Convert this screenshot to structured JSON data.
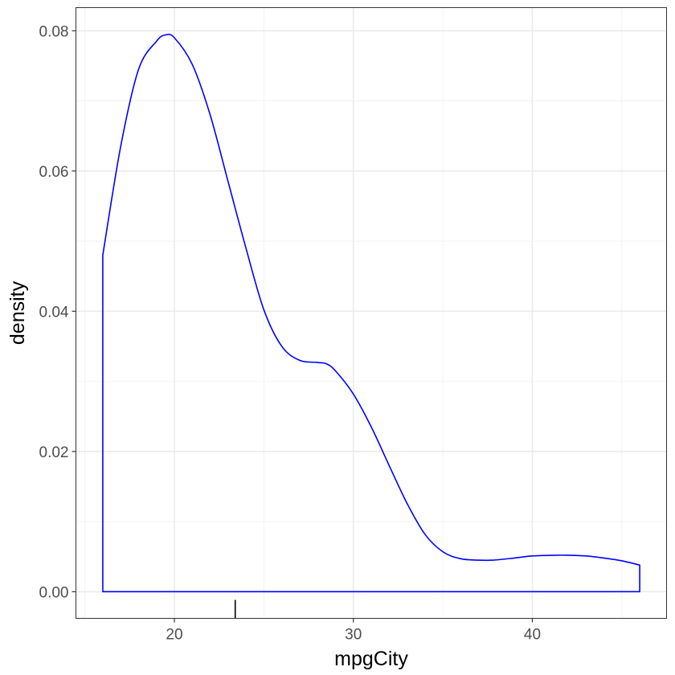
{
  "chart_data": {
    "type": "area",
    "xlabel": "mpgCity",
    "ylabel": "density",
    "xlim": [
      14.5,
      47.5
    ],
    "ylim": [
      -0.0038,
      0.0833
    ],
    "x_ticks": [
      20,
      30,
      40
    ],
    "x_tick_labels": [
      "20",
      "30",
      "40"
    ],
    "x_minor_ticks": [
      15,
      25,
      35,
      45
    ],
    "y_ticks": [
      0.0,
      0.02,
      0.04,
      0.06,
      0.08
    ],
    "y_tick_labels": [
      "0.00",
      "0.02",
      "0.04",
      "0.06",
      "0.08"
    ],
    "y_minor_ticks": [
      0.01,
      0.03,
      0.05,
      0.07
    ],
    "grid": true,
    "series": [
      {
        "color": "#0000ff",
        "fill": "none",
        "x": [
          16.0,
          17.0,
          18.0,
          19.0,
          19.5,
          20.0,
          21.0,
          22.0,
          23.0,
          24.0,
          25.0,
          26.0,
          27.0,
          28.0,
          28.5,
          29.0,
          30.0,
          31.0,
          32.0,
          33.0,
          34.0,
          35.0,
          36.0,
          37.0,
          37.8,
          39.0,
          40.0,
          41.3,
          42.0,
          43.0,
          44.0,
          45.0,
          46.0
        ],
        "y": [
          0.048,
          0.0635,
          0.0745,
          0.0785,
          0.0794,
          0.079,
          0.0752,
          0.068,
          0.0585,
          0.049,
          0.0402,
          0.035,
          0.033,
          0.0327,
          0.0325,
          0.0315,
          0.0282,
          0.0235,
          0.018,
          0.0126,
          0.0082,
          0.0057,
          0.0047,
          0.0045,
          0.0045,
          0.0048,
          0.0051,
          0.0052,
          0.0052,
          0.0051,
          0.0048,
          0.0044,
          0.0038
        ]
      }
    ],
    "rug": [
      23.4
    ]
  }
}
